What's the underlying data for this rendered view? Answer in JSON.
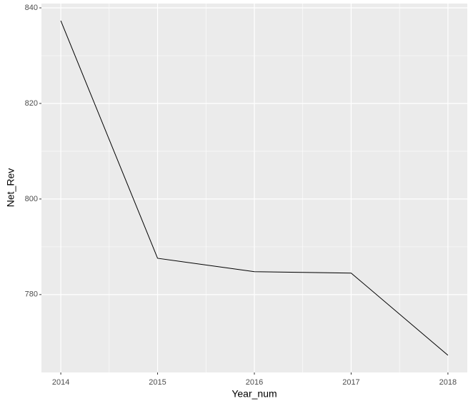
{
  "chart_data": {
    "type": "line",
    "xlabel": "Year_num",
    "ylabel": "Net_Rev",
    "x": [
      2014,
      2015,
      2016,
      2017,
      2018
    ],
    "series": [
      {
        "name": "Net_Rev",
        "color": "#000000",
        "values": [
          837.3,
          787.6,
          784.8,
          784.5,
          767.3
        ]
      }
    ],
    "xlim": [
      2013.8,
      2018.2
    ],
    "xticks": [
      2014,
      2015,
      2016,
      2017,
      2018
    ],
    "ylim": [
      763.7,
      840.9
    ],
    "yticks": [
      780,
      800,
      820,
      840
    ],
    "grid": true
  }
}
